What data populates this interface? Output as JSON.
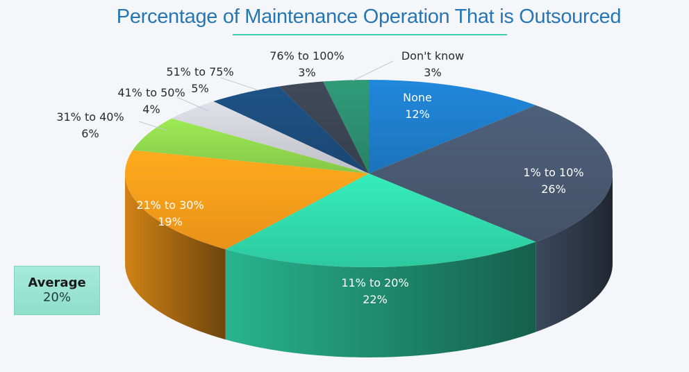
{
  "chart_data": {
    "type": "pie",
    "title": "Percentage of Maintenance Operation That is Outsourced",
    "three_d": true,
    "slices": [
      {
        "label": "None",
        "value": 12,
        "display": "12%",
        "color": "#1d79c4"
      },
      {
        "label": "1% to 10%",
        "value": 26,
        "display": "26%",
        "color": "#46566d"
      },
      {
        "label": "11% to 20%",
        "value": 22,
        "display": "22%",
        "color": "#2fd4a6"
      },
      {
        "label": "21% to 30%",
        "value": 19,
        "display": "19%",
        "color": "#f5991a"
      },
      {
        "label": "31% to 40%",
        "value": 6,
        "display": "6%",
        "color": "#8cd14c"
      },
      {
        "label": "41% to 50%",
        "value": 4,
        "display": "4%",
        "color": "#c9c9d1"
      },
      {
        "label": "51% to 75%",
        "value": 5,
        "display": "5%",
        "color": "#1b4a78"
      },
      {
        "label": "76% to 100%",
        "value": 3,
        "display": "3%",
        "color": "#394250"
      },
      {
        "label": "Don't know",
        "value": 3,
        "display": "3%",
        "color": "#2b8a6b"
      }
    ]
  },
  "average": {
    "label": "Average",
    "value": "20%"
  }
}
